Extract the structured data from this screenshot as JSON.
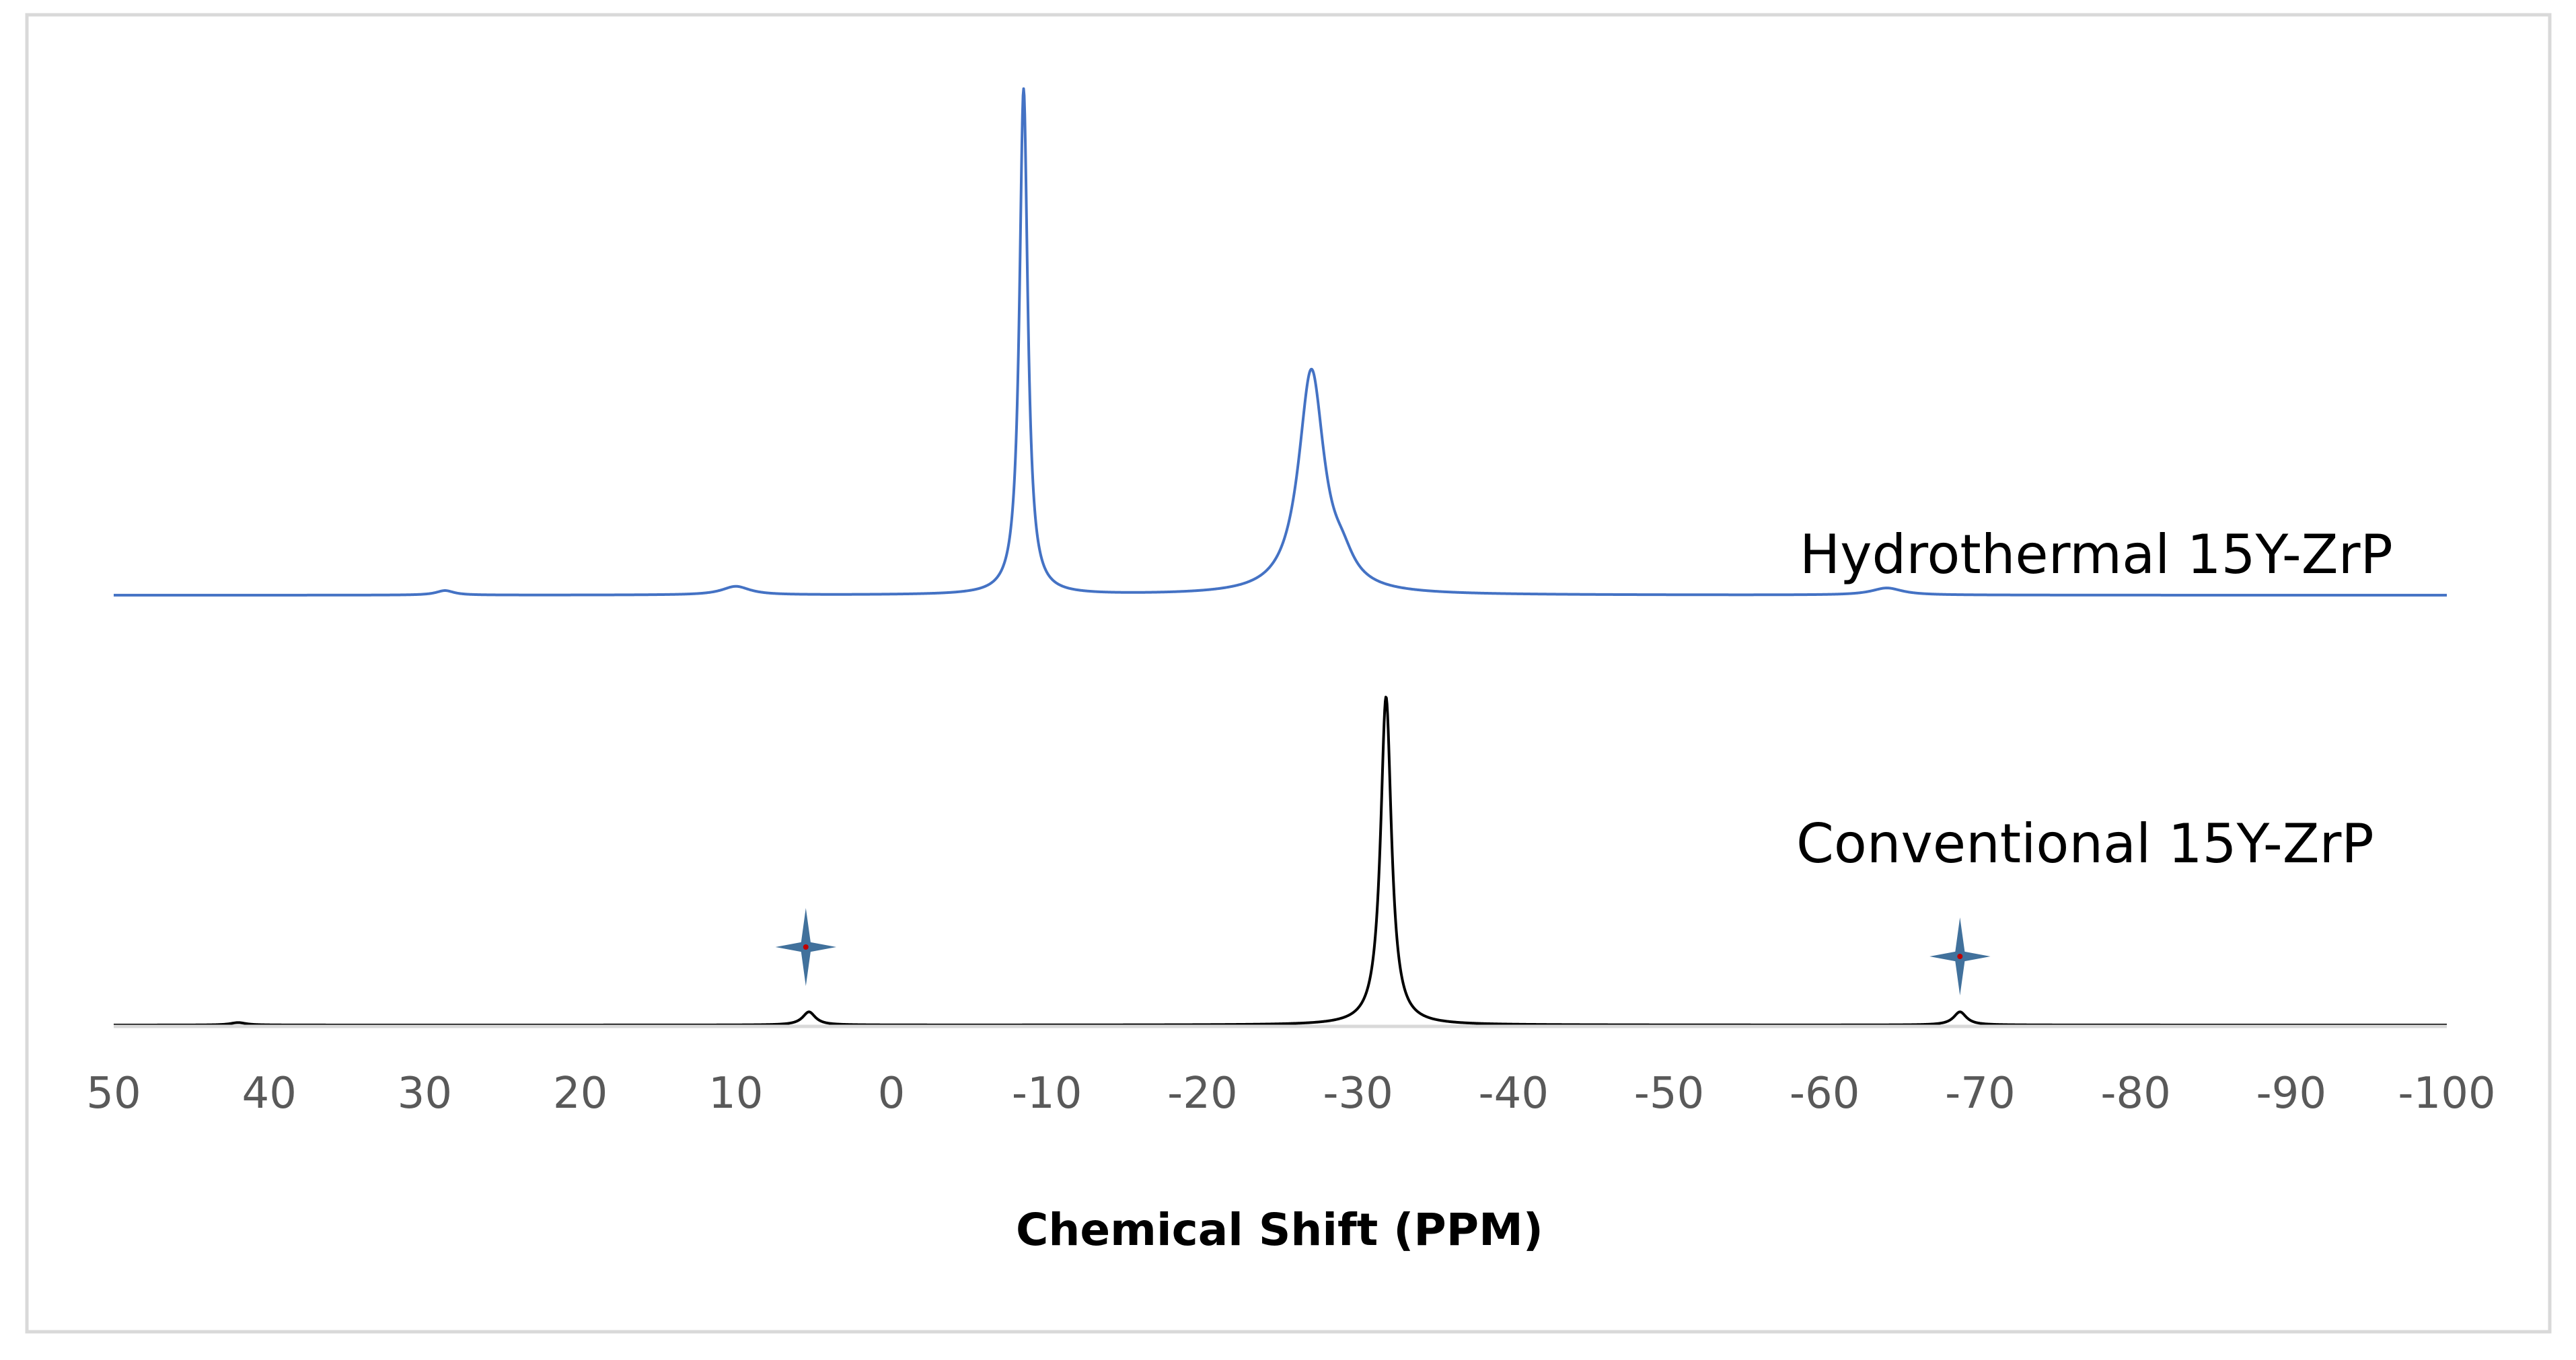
{
  "chart_data": {
    "type": "line",
    "title": "",
    "xlabel": "Chemical Shift (PPM)",
    "ylabel": "",
    "xlim": [
      50,
      -100
    ],
    "x_reversed": true,
    "xticks": [
      50,
      40,
      30,
      20,
      10,
      0,
      -10,
      -20,
      -30,
      -40,
      -50,
      -60,
      -70,
      -80,
      -90,
      -100
    ],
    "xtick_labels": [
      "50",
      "40",
      "30",
      "20",
      "10",
      "0",
      "-10",
      "-20",
      "-30",
      "-40",
      "-50",
      "-60",
      "-70",
      "-80",
      "-90",
      "-100"
    ],
    "grid": false,
    "legend": "none",
    "series": [
      {
        "name": "Hydrothermal 15Y-ZrP",
        "color": "#4472C4",
        "stacked_offset": "upper",
        "peaks": [
          {
            "x": 28.7,
            "height": 0.009,
            "width": 0.7
          },
          {
            "x": 10.0,
            "height": 0.017,
            "width": 1.1
          },
          {
            "x": -8.5,
            "height": 1.0,
            "width": 0.32
          },
          {
            "x": -27.0,
            "height": 0.44,
            "width": 1.0
          },
          {
            "x": -29.0,
            "height": 0.04,
            "width": 0.9
          },
          {
            "x": -64.0,
            "height": 0.014,
            "width": 1.2
          }
        ]
      },
      {
        "name": "Conventional 15Y-ZrP",
        "color": "#000000",
        "stacked_offset": "lower",
        "peaks": [
          {
            "x": 42.0,
            "height": 0.006,
            "width": 0.6
          },
          {
            "x": 5.3,
            "height": 0.032,
            "width": 0.5
          },
          {
            "x": -31.8,
            "height": 0.8,
            "width": 0.42
          },
          {
            "x": -68.7,
            "height": 0.032,
            "width": 0.5
          }
        ]
      }
    ],
    "annotations": [
      {
        "type": "spinning-sideband-star-icon",
        "x": 5.5,
        "series": "Conventional 15Y-ZrP"
      },
      {
        "type": "spinning-sideband-star-icon",
        "x": -68.7,
        "series": "Conventional 15Y-ZrP"
      }
    ]
  },
  "colors": {
    "axis": "#D9D9D9",
    "tick_text": "#595959",
    "star_fill": "#41719C",
    "star_center": "#C00000"
  }
}
